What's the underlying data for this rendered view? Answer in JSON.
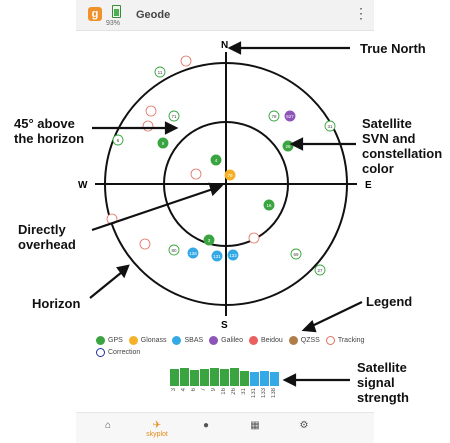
{
  "appbar": {
    "logo_letter": "g",
    "battery_percent": "93%",
    "title": "Geode",
    "menu_icon": "more-vert-icon"
  },
  "compass": {
    "north": "N",
    "south": "S",
    "east": "E",
    "west": "W"
  },
  "colors": {
    "gps": "#3aa540",
    "glonass": "#f4b128",
    "sbas": "#35a9e6",
    "galileo": "#8e55b8",
    "beidou": "#ea5f5f",
    "qzss": "#b07c47",
    "tracking": "#e07060",
    "correction": "#1f2fa8"
  },
  "satellites": [
    {
      "label": "11",
      "sys": "tracking"
    },
    {
      "label": "31",
      "sys": "tracking"
    },
    {
      "label": "6",
      "sys": "tracking"
    },
    {
      "label": "71",
      "sys": "tracking"
    },
    {
      "label": "78",
      "sys": "tracking"
    },
    {
      "label": "69",
      "sys": "tracking"
    },
    {
      "label": "80",
      "sys": "tracking"
    },
    {
      "label": "27",
      "sys": "tracking"
    },
    {
      "label": "79",
      "sys": "glonass"
    },
    {
      "label": "9",
      "sys": "gps"
    },
    {
      "label": "4",
      "sys": "gps"
    },
    {
      "label": "26",
      "sys": "gps"
    },
    {
      "label": "16",
      "sys": "gps"
    },
    {
      "label": "3",
      "sys": "gps"
    },
    {
      "label": "138",
      "sys": "sbas"
    },
    {
      "label": "131",
      "sys": "sbas"
    },
    {
      "label": "133",
      "sys": "sbas"
    },
    {
      "label": "627",
      "sys": "galileo"
    }
  ],
  "annotations": {
    "true_north": "True North",
    "above_horizon": [
      "45° above",
      "the horizon"
    ],
    "satellite_svn": [
      "Satellite",
      "SVN and",
      "constellation",
      "color"
    ],
    "directly_overhead": [
      "Directly",
      "overhead"
    ],
    "horizon": "Horizon",
    "legend": "Legend",
    "signal_strength": [
      "Satellite",
      "signal",
      "strength"
    ]
  },
  "legend": {
    "row1": [
      {
        "label": "GPS",
        "sys": "gps"
      },
      {
        "label": "Glonass",
        "sys": "glonass"
      },
      {
        "label": "SBAS",
        "sys": "sbas"
      },
      {
        "label": "Galileo",
        "sys": "galileo"
      },
      {
        "label": "Beidou",
        "sys": "beidou"
      },
      {
        "label": "QZSS",
        "sys": "qzss"
      },
      {
        "label": "Tracking",
        "sys": "tracking"
      }
    ],
    "row2": [
      {
        "label": "Correction",
        "sys": "correction"
      }
    ]
  },
  "signal_bars": [
    {
      "label": "3",
      "strength": 0.85,
      "sys": "gps"
    },
    {
      "label": "4",
      "strength": 0.9,
      "sys": "gps"
    },
    {
      "label": "6",
      "strength": 0.8,
      "sys": "gps"
    },
    {
      "label": "7",
      "strength": 0.85,
      "sys": "gps"
    },
    {
      "label": "9",
      "strength": 0.9,
      "sys": "gps"
    },
    {
      "label": "16",
      "strength": 0.85,
      "sys": "gps"
    },
    {
      "label": "26",
      "strength": 0.9,
      "sys": "gps"
    },
    {
      "label": "31",
      "strength": 0.75,
      "sys": "gps"
    },
    {
      "label": "131",
      "strength": 0.7,
      "sys": "sbas"
    },
    {
      "label": "133",
      "strength": 0.75,
      "sys": "sbas"
    },
    {
      "label": "138",
      "strength": 0.7,
      "sys": "sbas"
    }
  ],
  "nav": [
    {
      "label": "",
      "icon": "home-icon"
    },
    {
      "label": "skyplot",
      "icon": "satellite-icon",
      "active": true
    },
    {
      "label": "",
      "icon": "location-pin-icon"
    },
    {
      "label": "",
      "icon": "dashboard-icon"
    },
    {
      "label": "",
      "icon": "settings-gear-icon"
    }
  ]
}
